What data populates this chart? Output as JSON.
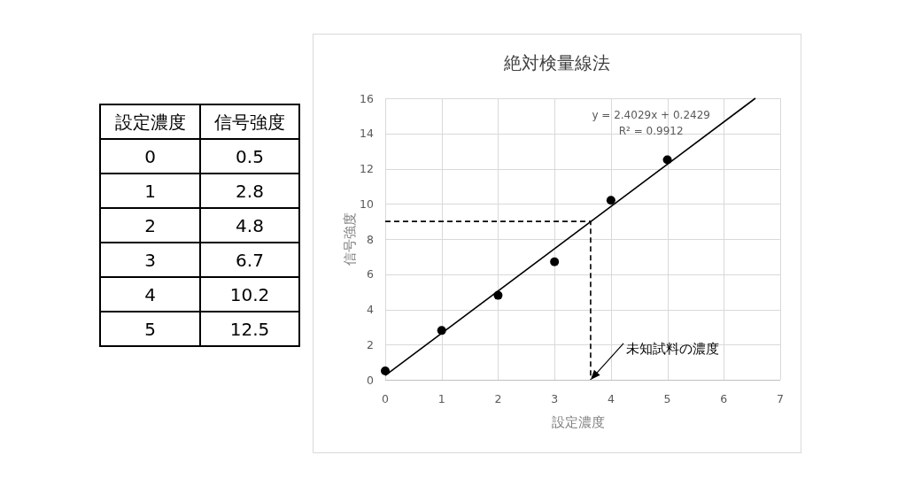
{
  "chart_data": {
    "type": "scatter",
    "title": "絶対検量線法",
    "xlabel": "設定濃度",
    "ylabel": "信号強度",
    "xlim": [
      0,
      7
    ],
    "xticks": [
      0,
      1,
      2,
      3,
      4,
      5,
      6,
      7
    ],
    "ylim": [
      0,
      16
    ],
    "yticks": [
      0,
      2,
      4,
      6,
      8,
      10,
      12,
      14,
      16
    ],
    "grid": true,
    "series": [
      {
        "type": "scatter",
        "color": "#000000",
        "marker": "circle",
        "x": [
          0,
          1,
          2,
          3,
          4,
          5
        ],
        "values": [
          0.5,
          2.8,
          4.8,
          6.7,
          10.2,
          12.5
        ]
      },
      {
        "type": "line",
        "color": "#000000",
        "marker": "none",
        "line_style": "solid",
        "x": [
          0,
          6.56
        ],
        "values": [
          0.24,
          16
        ]
      },
      {
        "type": "line",
        "color": "#000000",
        "marker": "none",
        "line_style": "dashed",
        "x": [
          0,
          3.64,
          3.64
        ],
        "values": [
          9,
          9,
          0
        ]
      }
    ],
    "annotations": [
      "0",
      "0.5",
      "1",
      "2.8",
      "2",
      "4.8",
      "3",
      "6.7",
      "4",
      "10.2",
      "5",
      "12.5",
      "y = 2.4029x + 0.2429",
      "R² = 0.9912",
      "未知試料の濃度"
    ]
  }
}
